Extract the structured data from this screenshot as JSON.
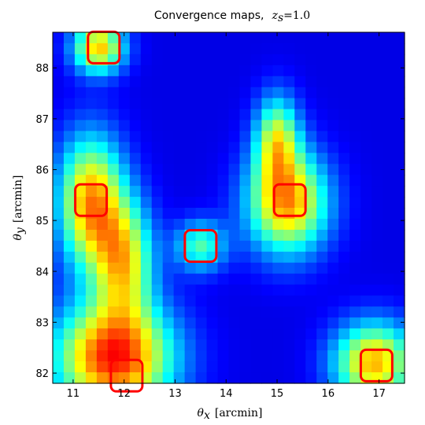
{
  "chart_data": {
    "type": "heatmap",
    "title": {
      "text": "Convergence maps,",
      "math": "z",
      "math_sub": "s",
      "math_rest": "=1.0"
    },
    "xlabel": {
      "symbol": "θ",
      "sub": "x",
      "unit": "[arcmin]"
    },
    "ylabel": {
      "symbol": "θ",
      "sub": "y",
      "unit": "[arcmin]"
    },
    "xlim": [
      10.6,
      17.5
    ],
    "ylim": [
      81.8,
      88.7
    ],
    "xticks": [
      11,
      12,
      13,
      14,
      15,
      16,
      17
    ],
    "yticks": [
      82,
      83,
      84,
      85,
      86,
      87,
      88
    ],
    "grid": false,
    "colormap": "jet",
    "value_range": [
      0,
      1
    ],
    "background_value": 0.1,
    "peaks": [
      {
        "x": 11.5,
        "y": 88.4,
        "value": 0.58,
        "sx": 0.35,
        "sy": 0.35
      },
      {
        "x": 11.35,
        "y": 85.35,
        "value": 0.62,
        "sx": 0.45,
        "sy": 0.9
      },
      {
        "x": 12.0,
        "y": 84.2,
        "value": 0.5,
        "sx": 0.4,
        "sy": 0.8
      },
      {
        "x": 11.8,
        "y": 82.3,
        "value": 0.75,
        "sx": 0.8,
        "sy": 0.75
      },
      {
        "x": 13.5,
        "y": 84.5,
        "value": 0.35,
        "sx": 0.35,
        "sy": 0.35
      },
      {
        "x": 15.2,
        "y": 85.35,
        "value": 0.62,
        "sx": 0.55,
        "sy": 0.7
      },
      {
        "x": 15.0,
        "y": 86.6,
        "value": 0.45,
        "sx": 0.3,
        "sy": 0.6
      },
      {
        "x": 16.9,
        "y": 82.2,
        "value": 0.6,
        "sx": 0.55,
        "sy": 0.55
      }
    ],
    "markers": [
      {
        "x": 11.6,
        "y": 88.4,
        "color": "#ff0000"
      },
      {
        "x": 11.35,
        "y": 85.4,
        "color": "#ff0000"
      },
      {
        "x": 13.5,
        "y": 84.5,
        "color": "#ff0000"
      },
      {
        "x": 15.25,
        "y": 85.4,
        "color": "#ff0000"
      },
      {
        "x": 12.05,
        "y": 81.95,
        "color": "#ff0000"
      },
      {
        "x": 16.95,
        "y": 82.15,
        "color": "#ff0000"
      }
    ],
    "marker_style": "rounded-square"
  }
}
